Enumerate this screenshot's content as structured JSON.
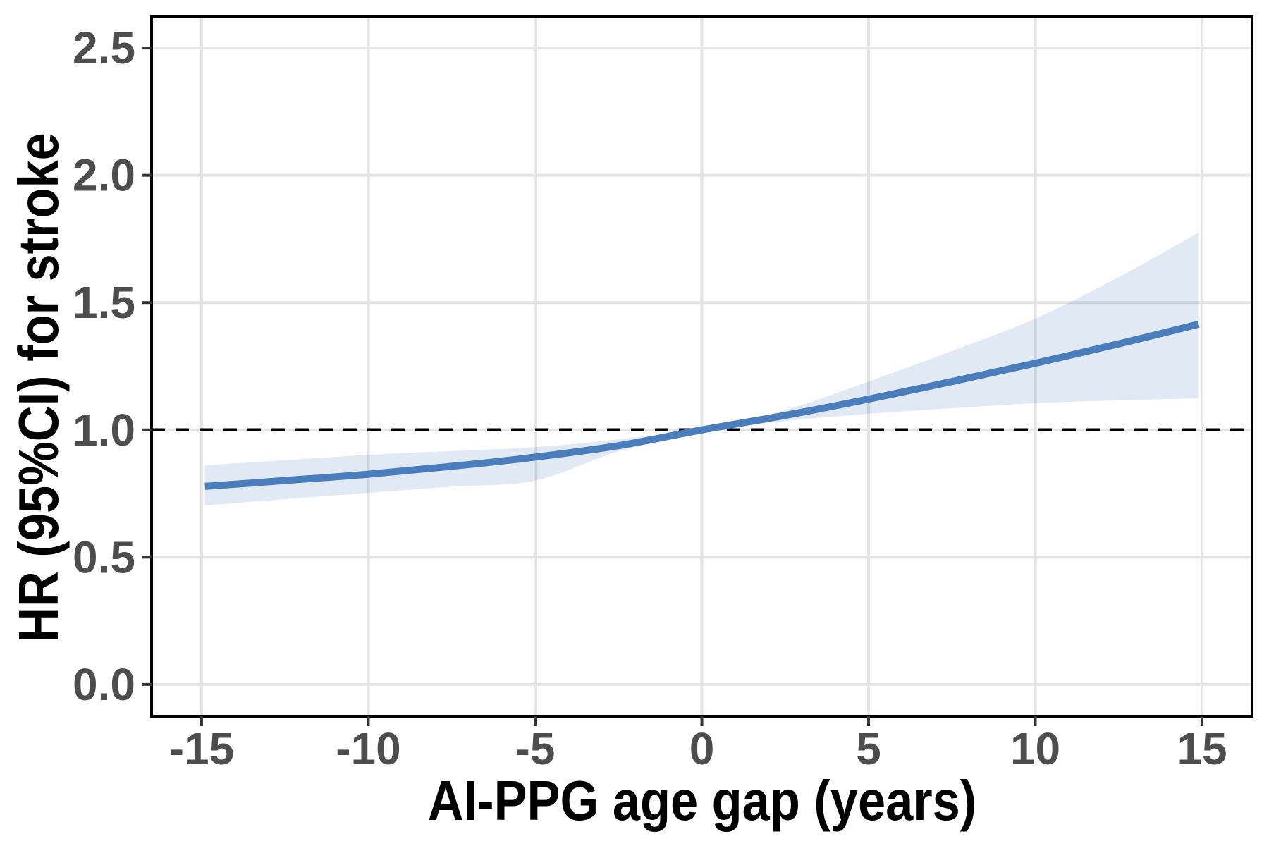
{
  "figure": {
    "background": "#FFFFFF"
  },
  "chart_data": {
    "type": "line",
    "title": "",
    "xlabel": "AI-PPG age gap (years)",
    "ylabel": "HR (95%CI) for stroke",
    "x_ticks": [
      -15,
      -10,
      -5,
      0,
      5,
      10,
      15
    ],
    "x_tick_labels": [
      "-15",
      "-10",
      "-5",
      "0",
      "5",
      "10",
      "15"
    ],
    "y_ticks": [
      0.0,
      0.5,
      1.0,
      1.5,
      2.0,
      2.5
    ],
    "y_tick_labels": [
      "0.0",
      "0.5",
      "1.0",
      "1.5",
      "2.0",
      "2.5"
    ],
    "xlim": [
      -16.5,
      16.5
    ],
    "ylim": [
      -0.125,
      2.625
    ],
    "grid": true,
    "legend_position": "none",
    "reference_line": {
      "y": 1.0,
      "style": "dashed",
      "color": "#000000"
    },
    "x": [
      -14.9,
      -12.5,
      -10,
      -7.5,
      -5,
      -2.5,
      0,
      2.5,
      5,
      7.5,
      10,
      12.5,
      14.9
    ],
    "series": [
      {
        "name": "HR",
        "values": [
          0.778,
          0.801,
          0.826,
          0.857,
          0.893,
          0.938,
          1.0,
          1.057,
          1.121,
          1.19,
          1.262,
          1.338,
          1.415
        ]
      },
      {
        "name": "95% CI lower",
        "values": [
          0.703,
          0.728,
          0.753,
          0.777,
          0.801,
          0.916,
          0.995,
          1.035,
          1.063,
          1.085,
          1.105,
          1.116,
          1.124
        ]
      },
      {
        "name": "95% CI upper",
        "values": [
          0.861,
          0.881,
          0.902,
          0.917,
          0.932,
          0.963,
          1.004,
          1.078,
          1.19,
          1.31,
          1.437,
          1.6,
          1.775
        ]
      }
    ],
    "colors": {
      "line": "#4A7DBB",
      "ci_fill": "#4A7DBB",
      "ci_opacity": 0.17,
      "grid": "#E4E4E4",
      "panel_border": "#000000",
      "tick_mark": "#333333",
      "tick_text": "#4D4D4D",
      "title_text": "#000000",
      "reference": "#000000"
    }
  }
}
